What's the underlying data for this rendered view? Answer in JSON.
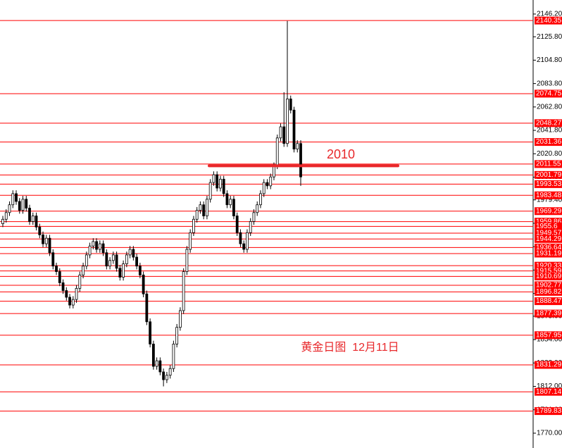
{
  "chart_data": {
    "type": "candlestick",
    "up_color": "#ffffff",
    "down_color": "#000000",
    "level_color": "#ff0000",
    "ylim": [
      1756.7,
      2158.8
    ],
    "yticks": [
      {
        "value": 2146.2,
        "label": "2146.20"
      },
      {
        "value": 2125.8,
        "label": "2125.80"
      },
      {
        "value": 2104.8,
        "label": "2104.80"
      },
      {
        "value": 2083.8,
        "label": "2083.80"
      },
      {
        "value": 2062.8,
        "label": "2062.80"
      },
      {
        "value": 2041.8,
        "label": "2041.80"
      },
      {
        "value": 2020.8,
        "label": "2020.80"
      },
      {
        "value": 1999.8,
        "label": "1999.80"
      },
      {
        "value": 1979.4,
        "label": "1979.40"
      },
      {
        "value": 1958.4,
        "label": "1958.40"
      },
      {
        "value": 1937.4,
        "label": "1937.40"
      },
      {
        "value": 1916.4,
        "label": "1916.40"
      },
      {
        "value": 1895.4,
        "label": "1895.40"
      },
      {
        "value": 1875,
        "label": "1875.00"
      },
      {
        "value": 1854,
        "label": "1854.00"
      },
      {
        "value": 1833,
        "label": "1833.00"
      },
      {
        "value": 1812,
        "label": "1812.00"
      },
      {
        "value": 1791,
        "label": "1791.00"
      },
      {
        "value": 1770,
        "label": "1770.00"
      }
    ],
    "levels": [
      2140.35,
      2074.75,
      2048.27,
      2031.36,
      2011.55,
      2001.79,
      1993.53,
      1983.48,
      1969.29,
      1959.86,
      1955.6,
      1949.57,
      1944.29,
      1936.64,
      1931.19,
      1920.33,
      1915.59,
      1910.69,
      1902.77,
      1896.82,
      1888.47,
      1877.39,
      1857.95,
      1831.29,
      1807.14,
      1789.83
    ],
    "annotations": [
      {
        "label": "2010",
        "value": 2010
      },
      {
        "label": "黄金日图  12月11日"
      }
    ],
    "open": [
      1958,
      1962,
      1968,
      1975,
      1985,
      1978,
      1970,
      1980,
      1972,
      1960,
      1965,
      1955,
      1948,
      1940,
      1945,
      1932,
      1920,
      1915,
      1905,
      1898,
      1892,
      1885,
      1890,
      1900,
      1912,
      1920,
      1930,
      1938,
      1942,
      1935,
      1940,
      1932,
      1920,
      1925,
      1930,
      1918,
      1910,
      1922,
      1930,
      1935,
      1928,
      1920,
      1912,
      1895,
      1870,
      1850,
      1830,
      1835,
      1825,
      1818,
      1822,
      1828,
      1850,
      1865,
      1880,
      1915,
      1935,
      1950,
      1962,
      1970,
      1975,
      1965,
      1980,
      1995,
      2002,
      1990,
      1998,
      1985,
      1975,
      1980,
      1965,
      1950,
      1940,
      1935,
      1950,
      1960,
      1968,
      1975,
      1985,
      1995,
      1992,
      2000,
      2010,
      2035,
      2045,
      2030,
      2070,
      2060,
      2025,
      2030
    ],
    "high": [
      1965,
      1971,
      1978,
      1988,
      1988,
      1981,
      1983,
      1983,
      1975,
      1968,
      1968,
      1958,
      1951,
      1948,
      1948,
      1935,
      1923,
      1918,
      1908,
      1901,
      1895,
      1893,
      1903,
      1915,
      1923,
      1933,
      1941,
      1945,
      1945,
      1943,
      1943,
      1935,
      1928,
      1933,
      1933,
      1921,
      1925,
      1933,
      1938,
      1938,
      1931,
      1923,
      1915,
      1898,
      1873,
      1853,
      1838,
      1838,
      1828,
      1825,
      1831,
      1853,
      1868,
      1883,
      1918,
      1938,
      1953,
      1965,
      1973,
      1978,
      1978,
      1983,
      1998,
      2005,
      2005,
      2001,
      2001,
      1988,
      1983,
      1983,
      1968,
      1953,
      1943,
      1953,
      1963,
      1971,
      1978,
      1988,
      1998,
      1998,
      2003,
      2013,
      2038,
      2048,
      2076,
      2140,
      2073,
      2063,
      2033,
      2033
    ],
    "low": [
      1955,
      1959,
      1965,
      1972,
      1975,
      1967,
      1967,
      1969,
      1957,
      1957,
      1952,
      1945,
      1937,
      1937,
      1929,
      1917,
      1912,
      1902,
      1895,
      1889,
      1882,
      1882,
      1887,
      1897,
      1909,
      1917,
      1927,
      1935,
      1932,
      1932,
      1929,
      1917,
      1917,
      1922,
      1915,
      1907,
      1907,
      1919,
      1927,
      1925,
      1917,
      1909,
      1892,
      1867,
      1847,
      1827,
      1827,
      1822,
      1812,
      1815,
      1819,
      1825,
      1847,
      1862,
      1877,
      1912,
      1932,
      1947,
      1959,
      1967,
      1962,
      1962,
      1977,
      1992,
      1987,
      1987,
      1982,
      1972,
      1972,
      1962,
      1947,
      1937,
      1932,
      1932,
      1947,
      1957,
      1965,
      1972,
      1982,
      1989,
      1989,
      1997,
      2007,
      2032,
      2027,
      2027,
      2057,
      2022,
      2022,
      1992
    ],
    "close": [
      1962,
      1968,
      1975,
      1985,
      1978,
      1970,
      1980,
      1972,
      1960,
      1965,
      1955,
      1948,
      1940,
      1945,
      1932,
      1920,
      1915,
      1905,
      1898,
      1892,
      1885,
      1890,
      1900,
      1912,
      1920,
      1930,
      1938,
      1942,
      1935,
      1940,
      1932,
      1920,
      1925,
      1930,
      1918,
      1910,
      1922,
      1930,
      1935,
      1928,
      1920,
      1912,
      1895,
      1870,
      1850,
      1830,
      1835,
      1825,
      1818,
      1822,
      1828,
      1850,
      1865,
      1880,
      1915,
      1935,
      1950,
      1962,
      1970,
      1975,
      1965,
      1980,
      1995,
      2002,
      1990,
      1998,
      1985,
      1975,
      1980,
      1965,
      1950,
      1940,
      1935,
      1950,
      1960,
      1968,
      1975,
      1985,
      1995,
      1992,
      2000,
      2010,
      2035,
      2045,
      2030,
      2070,
      2060,
      2025,
      2030,
      2000
    ]
  }
}
